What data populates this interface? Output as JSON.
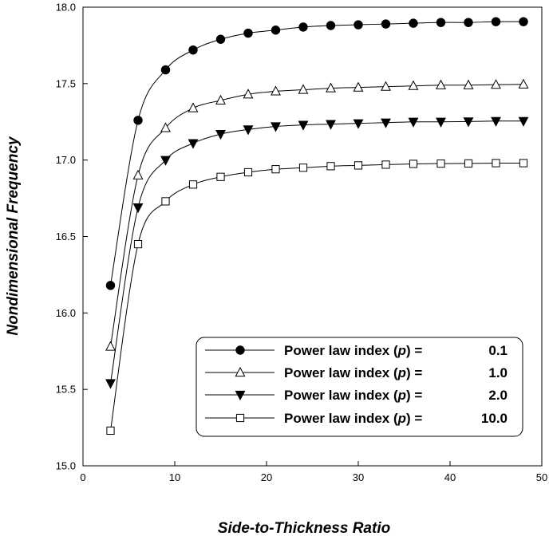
{
  "chart_data": {
    "type": "line",
    "title": "",
    "xlabel": "Side-to-Thickness  Ratio",
    "ylabel": "Nondimensional  Frequency",
    "xlim": [
      0,
      50
    ],
    "ylim": [
      15.0,
      18.0
    ],
    "x_ticks": [
      0,
      10,
      20,
      30,
      40,
      50
    ],
    "y_ticks": [
      15.0,
      15.5,
      16.0,
      16.5,
      17.0,
      17.5,
      18.0
    ],
    "x_tick_labels": [
      "0",
      "10",
      "20",
      "30",
      "40",
      "50"
    ],
    "y_tick_labels": [
      "15.0",
      "15.5",
      "16.0",
      "16.5",
      "17.0",
      "17.5",
      "18.0"
    ],
    "grid": false,
    "legend_position": "bottom-right",
    "x": [
      3,
      6,
      9,
      12,
      15,
      18,
      21,
      24,
      27,
      30,
      33,
      36,
      39,
      42,
      45,
      48
    ],
    "series": [
      {
        "name": "Power  law  index (p) =    0.1",
        "label_prefix": "Power  law  index (",
        "label_var": "p",
        "label_suffix": ") =",
        "label_value": "0.1",
        "marker": "filled-circle",
        "values": [
          16.18,
          17.26,
          17.59,
          17.72,
          17.79,
          17.83,
          17.85,
          17.87,
          17.88,
          17.885,
          17.89,
          17.895,
          17.9,
          17.9,
          17.905,
          17.905
        ]
      },
      {
        "name": "Power  law  index (p) =    1.0",
        "label_prefix": "Power  law  index (",
        "label_var": "p",
        "label_suffix": ") =",
        "label_value": "1.0",
        "marker": "open-triangle-up",
        "values": [
          15.78,
          16.9,
          17.21,
          17.34,
          17.39,
          17.43,
          17.45,
          17.46,
          17.47,
          17.475,
          17.48,
          17.485,
          17.49,
          17.49,
          17.493,
          17.495
        ]
      },
      {
        "name": "Power  law  index (p) =    2.0",
        "label_prefix": "Power  law  index (",
        "label_var": "p",
        "label_suffix": ") =",
        "label_value": "2.0",
        "marker": "filled-triangle-down",
        "values": [
          15.54,
          16.69,
          17.0,
          17.11,
          17.17,
          17.2,
          17.22,
          17.23,
          17.235,
          17.24,
          17.245,
          17.25,
          17.25,
          17.252,
          17.255,
          17.255
        ]
      },
      {
        "name": "Power  law  index (p) =  10.0",
        "label_prefix": "Power  law  index (",
        "label_var": "p",
        "label_suffix": ") =",
        "label_value": "10.0",
        "marker": "open-square",
        "values": [
          15.23,
          16.45,
          16.73,
          16.84,
          16.89,
          16.92,
          16.94,
          16.95,
          16.96,
          16.965,
          16.97,
          16.975,
          16.977,
          16.978,
          16.98,
          16.98
        ]
      }
    ]
  }
}
